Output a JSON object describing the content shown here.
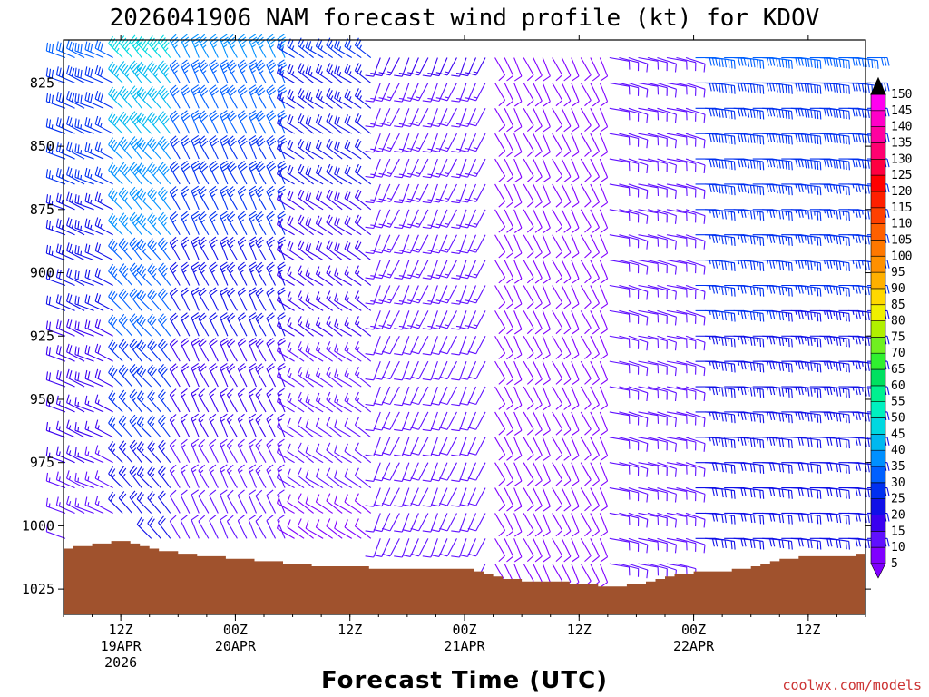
{
  "chart_data": {
    "type": "wind-barb-profile",
    "title": "2026041906 NAM forecast wind profile (kt) for KDOV",
    "xlabel": "Forecast Time (UTC)",
    "ylabel": "",
    "y_ticks": [
      825,
      850,
      875,
      900,
      925,
      950,
      975,
      1000,
      1025
    ],
    "y_range": [
      1035,
      808
    ],
    "x_ticks": [
      {
        "hour": 6,
        "lines": [
          "12Z",
          "19APR",
          "2026"
        ]
      },
      {
        "hour": 18,
        "lines": [
          "00Z",
          "20APR"
        ]
      },
      {
        "hour": 30,
        "lines": [
          "12Z"
        ]
      },
      {
        "hour": 42,
        "lines": [
          "00Z",
          "21APR"
        ]
      },
      {
        "hour": 54,
        "lines": [
          "12Z"
        ]
      },
      {
        "hour": 66,
        "lines": [
          "00Z",
          "22APR"
        ]
      },
      {
        "hour": 78,
        "lines": [
          "12Z"
        ]
      }
    ],
    "x_range": [
      0,
      84
    ],
    "colorbar": {
      "levels": [
        5,
        10,
        15,
        20,
        25,
        30,
        35,
        40,
        45,
        50,
        55,
        60,
        65,
        70,
        75,
        80,
        85,
        90,
        95,
        100,
        105,
        110,
        115,
        120,
        125,
        130,
        135,
        140,
        145,
        150
      ],
      "colors": [
        "#8000ff",
        "#6010ff",
        "#3a00f0",
        "#1010e8",
        "#0030f0",
        "#0060ff",
        "#0090ff",
        "#00b8f0",
        "#00d8e0",
        "#00f0c0",
        "#00f090",
        "#00e060",
        "#30f030",
        "#70f020",
        "#b0f000",
        "#f0f000",
        "#ffd800",
        "#ffb000",
        "#ff9000",
        "#ff7800",
        "#ff6000",
        "#ff4000",
        "#ff2000",
        "#ff0000",
        "#ff0040",
        "#ff0070",
        "#ff00a0",
        "#ff00c8",
        "#ff00f0"
      ]
    },
    "surface_pressure": [
      {
        "hour": 0,
        "p": 1009
      },
      {
        "hour": 3,
        "p": 1007
      },
      {
        "hour": 6,
        "p": 1006
      },
      {
        "hour": 9,
        "p": 1009
      },
      {
        "hour": 12,
        "p": 1011
      },
      {
        "hour": 15,
        "p": 1012
      },
      {
        "hour": 18,
        "p": 1013
      },
      {
        "hour": 21,
        "p": 1014
      },
      {
        "hour": 24,
        "p": 1015
      },
      {
        "hour": 27,
        "p": 1016
      },
      {
        "hour": 30,
        "p": 1016
      },
      {
        "hour": 33,
        "p": 1017
      },
      {
        "hour": 36,
        "p": 1017
      },
      {
        "hour": 39,
        "p": 1017
      },
      {
        "hour": 42,
        "p": 1017
      },
      {
        "hour": 45,
        "p": 1020
      },
      {
        "hour": 48,
        "p": 1022
      },
      {
        "hour": 51,
        "p": 1022
      },
      {
        "hour": 54,
        "p": 1023
      },
      {
        "hour": 57,
        "p": 1024
      },
      {
        "hour": 60,
        "p": 1023
      },
      {
        "hour": 63,
        "p": 1020
      },
      {
        "hour": 66,
        "p": 1018
      },
      {
        "hour": 69,
        "p": 1018
      },
      {
        "hour": 72,
        "p": 1016
      },
      {
        "hour": 75,
        "p": 1013
      },
      {
        "hour": 78,
        "p": 1012
      },
      {
        "hour": 81,
        "p": 1012
      },
      {
        "hour": 84,
        "p": 1011
      }
    ],
    "wind_regimes": [
      {
        "hours": [
          0,
          6
        ],
        "dir": 290,
        "speed_top": 30,
        "speed_bottom": 12
      },
      {
        "hours": [
          6,
          12
        ],
        "dir": 315,
        "speed_top": 45,
        "speed_bottom": 20
      },
      {
        "hours": [
          12,
          24
        ],
        "dir": 330,
        "speed_top": 35,
        "speed_bottom": 10
      },
      {
        "hours": [
          24,
          33
        ],
        "dir": 300,
        "speed_top": 25,
        "speed_bottom": 8
      },
      {
        "hours": [
          33,
          45
        ],
        "dir": 200,
        "speed_top": 15,
        "speed_bottom": 10
      },
      {
        "hours": [
          45,
          57
        ],
        "dir": 150,
        "speed_top": 8,
        "speed_bottom": 10
      },
      {
        "hours": [
          57,
          66
        ],
        "dir": 100,
        "speed_top": 12,
        "speed_bottom": 12
      },
      {
        "hours": [
          66,
          84
        ],
        "dir": 90,
        "speed_top": 30,
        "speed_bottom": 20
      }
    ]
  },
  "credit": "coolwx.com/models"
}
